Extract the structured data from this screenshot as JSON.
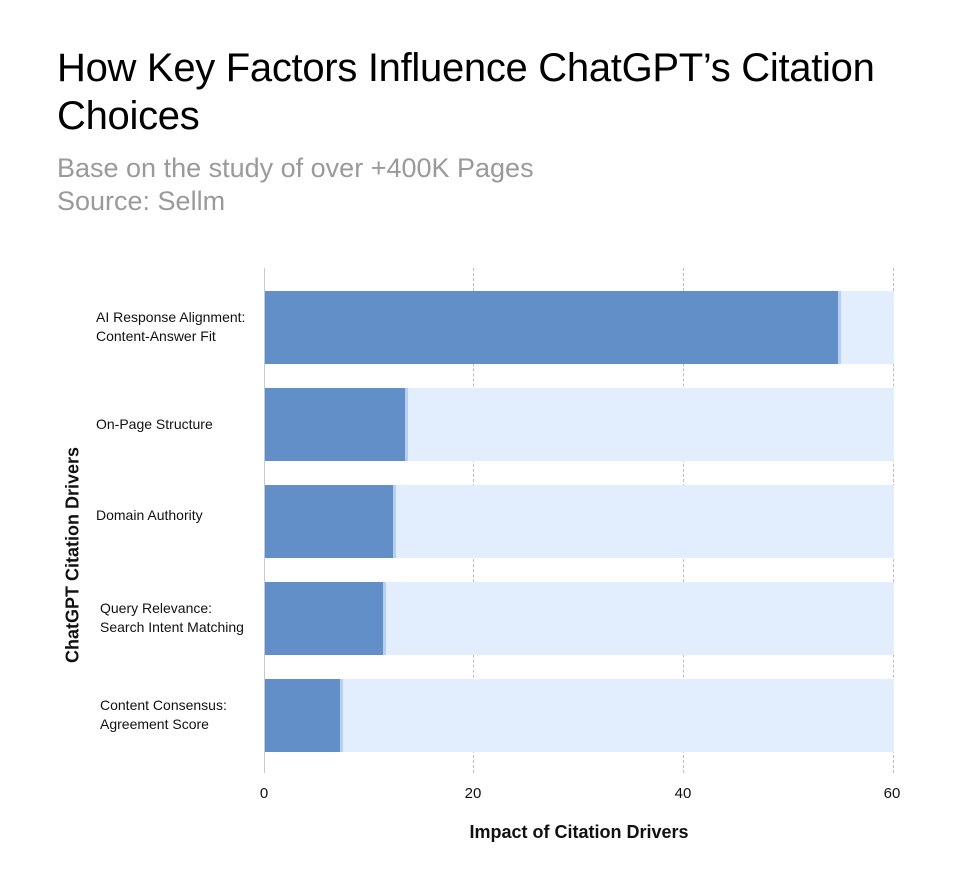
{
  "header": {
    "title": "How Key Factors Influence ChatGPT’s Citation Choices",
    "subtitle_line1": "Base on the study of over +400K Pages",
    "subtitle_line2": "Source: Sellm"
  },
  "colors": {
    "bar": "#628fc8",
    "bar_background": "#e2eefd",
    "subtitle": "#9a9a9a",
    "grid": "#bdbdbd"
  },
  "chart_data": {
    "type": "bar",
    "orientation": "horizontal",
    "title": "How Key Factors Influence ChatGPT’s Citation Choices",
    "subtitle": "Base on the study of over +400K Pages / Source: Sellm",
    "categories": [
      "AI Response Alignment: Content-Answer Fit",
      "On-Page Structure",
      "Domain Authority",
      "Query Relevance: Search Intent Matching",
      "Content Consensus: Agreement Score"
    ],
    "category_lines": [
      [
        "AI Response Alignment:",
        "Content-Answer Fit"
      ],
      [
        "On-Page Structure"
      ],
      [
        "Domain Authority"
      ],
      [
        "Query Relevance:",
        "Search Intent Matching"
      ],
      [
        "Content Consensus:",
        "Agreement Score"
      ]
    ],
    "values": [
      54.7,
      13.4,
      12.2,
      11.3,
      7.2
    ],
    "background_max": 60,
    "xlabel": "Impact of Citation Drivers",
    "ylabel": "ChatGPT Citation Drivers",
    "xlim": [
      0,
      60
    ],
    "xticks": [
      "0",
      "20",
      "40",
      "60"
    ],
    "grid": "vertical dashed",
    "legend": "none"
  }
}
